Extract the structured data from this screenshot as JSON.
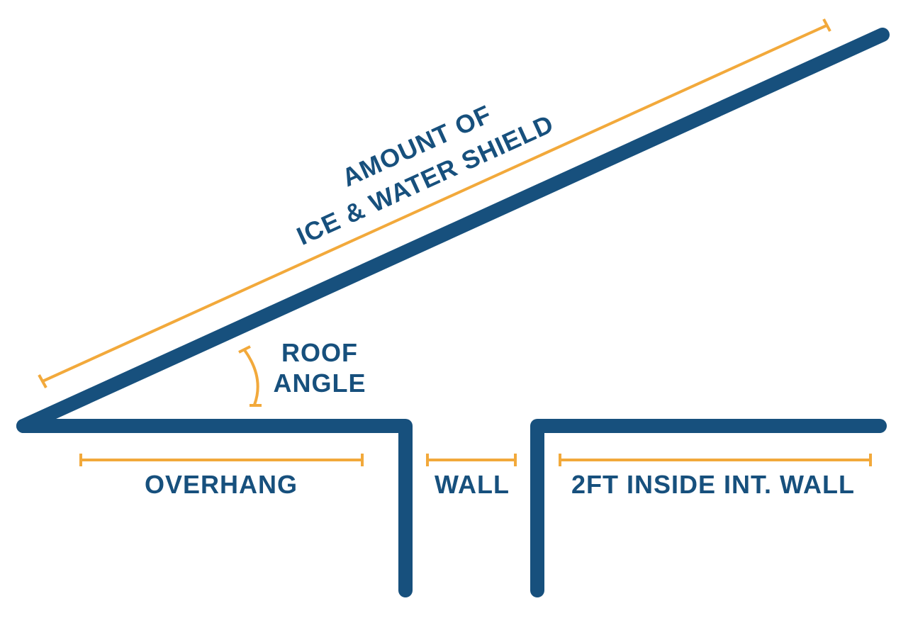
{
  "colors": {
    "structure": "#17507D",
    "dimension": "#F2A93B",
    "text": "#17507D",
    "background": "#FFFFFF"
  },
  "labels": {
    "amount_line1": "AMOUNT OF",
    "amount_line2": "ICE & WATER SHIELD",
    "roof_angle_line1": "ROOF",
    "roof_angle_line2": "ANGLE",
    "overhang": "OVERHANG",
    "wall": "WALL",
    "inside": "2FT INSIDE INT. WALL"
  }
}
